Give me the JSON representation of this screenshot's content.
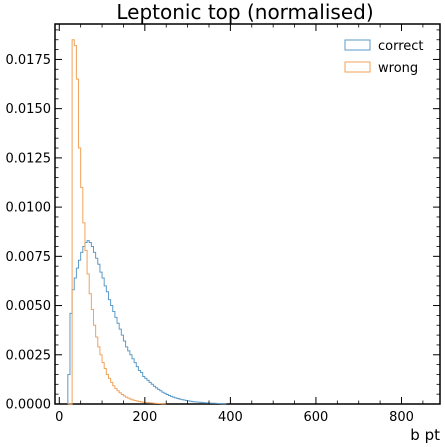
{
  "chart_data": {
    "type": "histogram",
    "title": "Leptonic top (normalised)",
    "xlabel": "b pt",
    "ylabel": "",
    "xlim": [
      -10,
      890
    ],
    "ylim": [
      0,
      0.0193
    ],
    "x_ticks": [
      0,
      200,
      400,
      600,
      800
    ],
    "y_ticks": [
      "0.0000",
      "0.0025",
      "0.0050",
      "0.0075",
      "0.0100",
      "0.0125",
      "0.0150",
      "0.0175"
    ],
    "y_tick_values": [
      0,
      0.0025,
      0.005,
      0.0075,
      0.01,
      0.0125,
      0.015,
      0.0175
    ],
    "bin_width": 5,
    "legend_position": "top-right",
    "grid": false,
    "series": [
      {
        "name": "correct",
        "color": "#5b9bc8",
        "x_start": 20,
        "values": [
          0.0015,
          0.0046,
          0.0058,
          0.0064,
          0.0069,
          0.0073,
          0.0077,
          0.008,
          0.0082,
          0.0083,
          0.0082,
          0.008,
          0.0077,
          0.0074,
          0.0071,
          0.0067,
          0.0064,
          0.006,
          0.0057,
          0.0053,
          0.005,
          0.0047,
          0.0044,
          0.0041,
          0.0038,
          0.0035,
          0.0032,
          0.0029,
          0.0027,
          0.0025,
          0.0023,
          0.0021,
          0.0019,
          0.0017,
          0.0016,
          0.0014,
          0.0013,
          0.0012,
          0.0011,
          0.001,
          0.0009,
          0.00082,
          0.00074,
          0.00067,
          0.0006,
          0.00054,
          0.00048,
          0.00043,
          0.00039,
          0.00035,
          0.00031,
          0.00028,
          0.00025,
          0.00022,
          0.0002,
          0.00018,
          0.00016,
          0.00014,
          0.00012,
          0.00011,
          0.0001,
          9e-05,
          8e-05,
          7e-05,
          6e-05,
          5e-05,
          4.5e-05,
          4e-05,
          3.5e-05,
          3e-05,
          2.5e-05,
          2e-05,
          1.5e-05,
          1e-05
        ]
      },
      {
        "name": "wrong",
        "color": "#f0a35a",
        "x_start": 20,
        "values": [
          0.0,
          0.0,
          0.0185,
          0.0182,
          0.0165,
          0.013,
          0.011,
          0.0092,
          0.0078,
          0.0066,
          0.0056,
          0.0048,
          0.004,
          0.0034,
          0.0029,
          0.0025,
          0.0021,
          0.0018,
          0.0015,
          0.0013,
          0.0011,
          0.00093,
          0.00079,
          0.00067,
          0.00057,
          0.00048,
          0.00041,
          0.00035,
          0.0003,
          0.00025,
          0.00021,
          0.00018,
          0.00015,
          0.00013,
          0.00011,
          9e-05,
          8e-05,
          7e-05,
          6e-05,
          5e-05,
          4e-05,
          3e-05,
          2.5e-05,
          2e-05,
          1.5e-05,
          1e-05
        ]
      }
    ]
  }
}
